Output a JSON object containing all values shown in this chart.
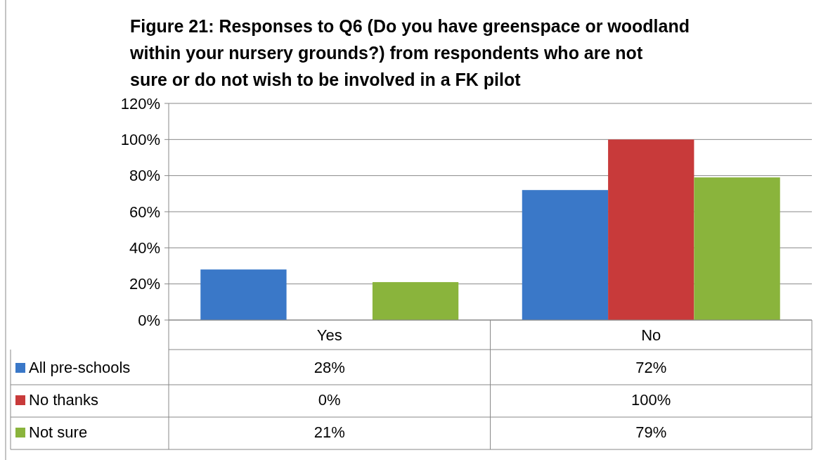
{
  "chart_data": {
    "type": "bar",
    "title": "Figure 21: Responses to Q6 (Do you have greenspace or woodland within your nursery grounds?) from respondents who are not sure or do not wish to be involved in a FK pilot",
    "categories": [
      "Yes",
      "No"
    ],
    "series": [
      {
        "name": "All pre-schools",
        "color": "#3a78c8",
        "values": [
          28,
          72
        ],
        "value_labels": [
          "28%",
          "72%"
        ]
      },
      {
        "name": "No thanks",
        "color": "#c83a3a",
        "values": [
          0,
          100
        ],
        "value_labels": [
          "0%",
          "100%"
        ]
      },
      {
        "name": "Not sure",
        "color": "#8ab43c",
        "values": [
          21,
          79
        ],
        "value_labels": [
          "21%",
          "79%"
        ]
      }
    ],
    "ylim": [
      0,
      120
    ],
    "yticks": [
      {
        "value": 0,
        "label": "0%"
      },
      {
        "value": 20,
        "label": "20%"
      },
      {
        "value": 40,
        "label": "40%"
      },
      {
        "value": 60,
        "label": "60%"
      },
      {
        "value": 80,
        "label": "80%"
      },
      {
        "value": 100,
        "label": "100%"
      },
      {
        "value": 120,
        "label": "120%"
      }
    ],
    "grid": "y",
    "legend": "bottom",
    "data_labels": true
  }
}
